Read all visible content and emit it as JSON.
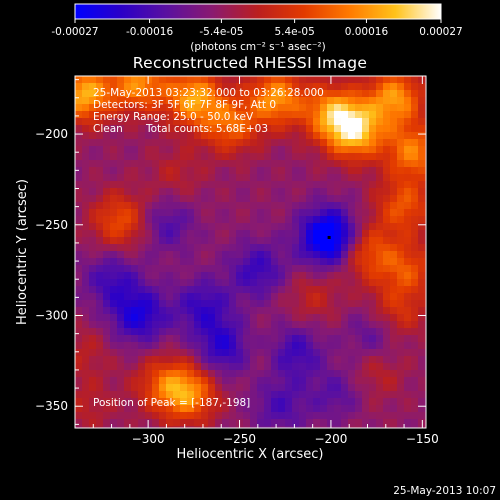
{
  "chart_data": {
    "type": "heatmap",
    "title": "Reconstructed RHESSI Image",
    "xlabel": "Heliocentric X (arcsec)",
    "ylabel": "Heliocentric Y (arcsec)",
    "xlim": [
      -340,
      -148
    ],
    "ylim": [
      -362,
      -168
    ],
    "xticks": [
      -300,
      -250,
      -200,
      -150
    ],
    "yticks": [
      -350,
      -300,
      -250,
      -200
    ],
    "colorbar": {
      "range": [
        -0.00027,
        0.00027
      ],
      "tick_values": [
        -0.00027,
        -0.00016,
        -5.4e-05,
        5.4e-05,
        0.00016,
        0.00027
      ],
      "tick_labels": [
        "-0.00027",
        "-0.00016",
        "-5.4e-05",
        "5.4e-05",
        "0.00016",
        "0.00027"
      ],
      "units_label": "(photons cm⁻² s⁻¹ asec⁻²)",
      "colormap": [
        "#0000ff",
        "#2a00c8",
        "#5a10a0",
        "#8a1a70",
        "#bb1f1f",
        "#e23a00",
        "#ff7a00",
        "#ffc21a",
        "#ffffff"
      ]
    },
    "annotations": [
      "25-May-2013 03:23:32.000 to 03:26:28.000",
      "Detectors: 3F 5F 6F 7F 8F 9F, Att 0",
      "Energy Range: 25.0 - 50.0 keV",
      "Clean",
      "Total counts: 5.68E+03"
    ],
    "peak_label": "Position of Peak = [-187,-198]",
    "peak": {
      "x": -187,
      "y": -198
    },
    "marked_point": {
      "x": -201,
      "y": -257
    },
    "hotspots": [
      {
        "x": -335,
        "y": -178,
        "v": 0.9
      },
      {
        "x": -305,
        "y": -172,
        "v": 0.75
      },
      {
        "x": -275,
        "y": -180,
        "v": 0.85
      },
      {
        "x": -255,
        "y": -195,
        "v": 0.6
      },
      {
        "x": -230,
        "y": -180,
        "v": 0.8
      },
      {
        "x": -200,
        "y": -188,
        "v": 0.7
      },
      {
        "x": -187,
        "y": -198,
        "v": 1.0
      },
      {
        "x": -165,
        "y": -180,
        "v": 0.8
      },
      {
        "x": -155,
        "y": -210,
        "v": 0.7
      },
      {
        "x": -160,
        "y": -240,
        "v": 0.55
      },
      {
        "x": -158,
        "y": -275,
        "v": 0.5
      },
      {
        "x": -165,
        "y": -300,
        "v": 0.45
      },
      {
        "x": -180,
        "y": -265,
        "v": 0.55
      },
      {
        "x": -315,
        "y": -248,
        "v": 0.55
      },
      {
        "x": -278,
        "y": -343,
        "v": 0.75
      },
      {
        "x": -292,
        "y": -338,
        "v": 0.45
      },
      {
        "x": -210,
        "y": -290,
        "v": 0.25
      },
      {
        "x": -285,
        "y": -222,
        "v": 0.2
      },
      {
        "x": -240,
        "y": -320,
        "v": 0.15
      },
      {
        "x": -335,
        "y": -320,
        "v": 0.2
      },
      {
        "x": -175,
        "y": -330,
        "v": 0.25
      },
      {
        "x": -190,
        "y": -350,
        "v": 0.15
      },
      {
        "x": -333,
        "y": -350,
        "v": 0.2
      }
    ],
    "coldspots": [
      {
        "x": -201,
        "y": -257,
        "v": -1.0
      },
      {
        "x": -305,
        "y": -300,
        "v": -0.6
      },
      {
        "x": -258,
        "y": -318,
        "v": -0.55
      },
      {
        "x": -220,
        "y": -320,
        "v": -0.45
      },
      {
        "x": -240,
        "y": -275,
        "v": -0.45
      },
      {
        "x": -270,
        "y": -295,
        "v": -0.45
      },
      {
        "x": -175,
        "y": -310,
        "v": -0.4
      },
      {
        "x": -320,
        "y": -280,
        "v": -0.4
      },
      {
        "x": -290,
        "y": -250,
        "v": -0.35
      },
      {
        "x": -195,
        "y": -345,
        "v": -0.4
      },
      {
        "x": -228,
        "y": -350,
        "v": -0.35
      }
    ]
  },
  "footer": {
    "timestamp": "25-May-2013 10:07"
  }
}
